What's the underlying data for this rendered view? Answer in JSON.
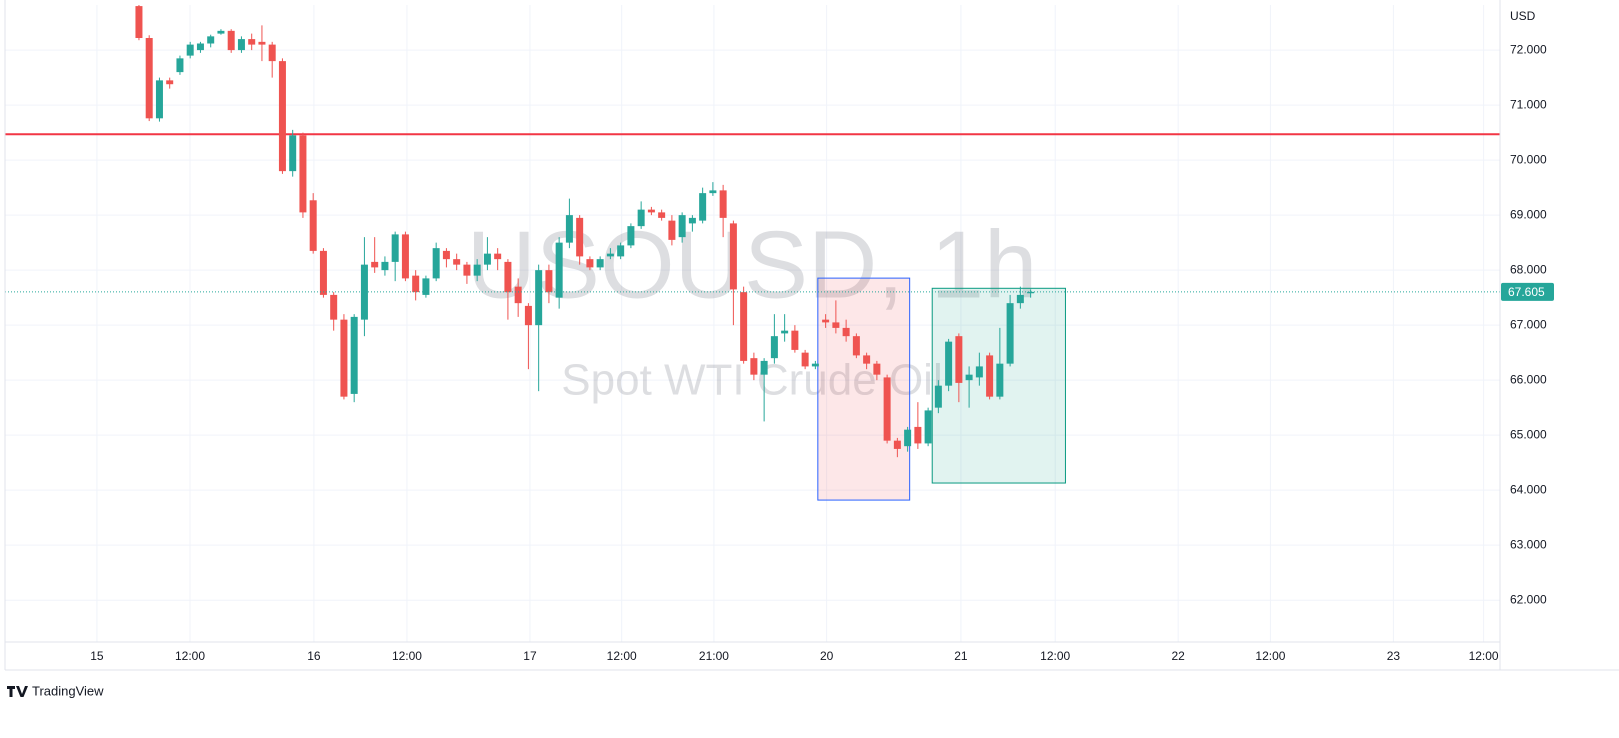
{
  "chart_data": {
    "type": "candlestick",
    "watermark": "USOUSD, 1h",
    "description": "Spot WTI Crude Oil",
    "currency": "USD",
    "brand": "TradingView",
    "up_color": "#26a69a",
    "down_color": "#ef5350",
    "grid": true,
    "xlim": [
      -13.07,
      132.8
    ],
    "ylim": [
      61.24,
      72.82
    ],
    "xticks": [
      {
        "value": -4.1,
        "label": "15"
      },
      {
        "value": 4.98,
        "label": "12:00"
      },
      {
        "value": 17.07,
        "label": "16"
      },
      {
        "value": 26.15,
        "label": "12:00"
      },
      {
        "value": 38.15,
        "label": "17"
      },
      {
        "value": 47.1,
        "label": "12:00"
      },
      {
        "value": 56.1,
        "label": "21:00"
      },
      {
        "value": 67.1,
        "label": "20"
      },
      {
        "value": 80.2,
        "label": "21"
      },
      {
        "value": 89.4,
        "label": "12:00"
      },
      {
        "value": 101.4,
        "label": "22"
      },
      {
        "value": 110.4,
        "label": "12:00"
      },
      {
        "value": 122.4,
        "label": "23"
      },
      {
        "value": 131.2,
        "label": "12:00"
      }
    ],
    "yticks": [
      {
        "value": 62,
        "label": "62.000"
      },
      {
        "value": 63,
        "label": "63.000"
      },
      {
        "value": 64,
        "label": "64.000"
      },
      {
        "value": 65,
        "label": "65.000"
      },
      {
        "value": 66,
        "label": "66.000"
      },
      {
        "value": 67,
        "label": "67.000"
      },
      {
        "value": 68,
        "label": "68.000"
      },
      {
        "value": 69,
        "label": "69.000"
      },
      {
        "value": 70,
        "label": "70.000"
      },
      {
        "value": 71,
        "label": "71.000"
      },
      {
        "value": 72,
        "label": "72.000"
      }
    ],
    "horizontal_line": {
      "value": 70.47,
      "color": "#f23645"
    },
    "last_price": 67.605,
    "boxes": [
      {
        "x": [
          66.24,
          75.2
        ],
        "y": [
          63.82,
          67.855
        ],
        "stroke": "#2962ff",
        "fill": "rgba(242,54,69,0.12)"
      },
      {
        "x": [
          77.4,
          90.4
        ],
        "y": [
          64.13,
          67.67
        ],
        "stroke": "#089981",
        "fill": "rgba(8,153,129,0.12)"
      }
    ],
    "ohlc": [
      [
        72.8,
        72.82,
        72.18,
        72.22
      ],
      [
        72.22,
        72.27,
        70.71,
        70.76
      ],
      [
        70.76,
        71.5,
        70.7,
        71.45
      ],
      [
        71.45,
        71.5,
        71.3,
        71.38
      ],
      [
        71.6,
        71.9,
        71.55,
        71.85
      ],
      [
        71.9,
        72.15,
        71.85,
        72.1
      ],
      [
        72.0,
        72.15,
        71.95,
        72.12
      ],
      [
        72.12,
        72.28,
        72.05,
        72.25
      ],
      [
        72.3,
        72.38,
        72.28,
        72.35
      ],
      [
        72.35,
        72.38,
        71.95,
        72.0
      ],
      [
        72.0,
        72.25,
        71.95,
        72.2
      ],
      [
        72.2,
        72.3,
        72.0,
        72.1
      ],
      [
        72.15,
        72.45,
        71.8,
        72.1
      ],
      [
        72.1,
        72.15,
        71.5,
        71.8
      ],
      [
        71.8,
        71.85,
        69.75,
        69.8
      ],
      [
        69.8,
        70.55,
        69.7,
        70.45
      ],
      [
        70.45,
        70.5,
        68.95,
        69.05
      ],
      [
        69.27,
        69.4,
        68.3,
        68.35
      ],
      [
        68.35,
        68.4,
        67.5,
        67.55
      ],
      [
        67.55,
        67.6,
        66.9,
        67.1
      ],
      [
        67.1,
        67.2,
        65.65,
        65.7
      ],
      [
        65.75,
        67.2,
        65.6,
        67.15
      ],
      [
        67.1,
        68.6,
        66.8,
        68.1
      ],
      [
        68.15,
        68.6,
        67.95,
        68.05
      ],
      [
        68.0,
        68.25,
        67.9,
        68.15
      ],
      [
        68.15,
        68.7,
        67.8,
        68.65
      ],
      [
        68.65,
        68.7,
        67.8,
        67.85
      ],
      [
        67.9,
        68.0,
        67.45,
        67.6
      ],
      [
        67.55,
        67.9,
        67.5,
        67.85
      ],
      [
        67.85,
        68.5,
        67.8,
        68.4
      ],
      [
        68.35,
        68.4,
        68.05,
        68.2
      ],
      [
        68.2,
        68.3,
        68.0,
        68.1
      ],
      [
        68.1,
        68.15,
        67.75,
        67.9
      ],
      [
        67.9,
        68.2,
        67.8,
        68.1
      ],
      [
        68.1,
        68.6,
        68.0,
        68.3
      ],
      [
        68.3,
        68.4,
        68.0,
        68.2
      ],
      [
        68.15,
        68.2,
        67.1,
        67.6
      ],
      [
        67.7,
        67.85,
        67.15,
        67.4
      ],
      [
        67.35,
        67.4,
        66.2,
        67.0
      ],
      [
        67.0,
        68.1,
        65.8,
        68.0
      ],
      [
        68.0,
        68.1,
        67.4,
        67.6
      ],
      [
        67.5,
        68.6,
        67.3,
        68.5
      ],
      [
        68.5,
        69.3,
        68.4,
        69.0
      ],
      [
        68.95,
        69.0,
        68.1,
        68.25
      ],
      [
        68.2,
        68.25,
        68.0,
        68.05
      ],
      [
        68.05,
        68.25,
        68.0,
        68.2
      ],
      [
        68.25,
        68.4,
        68.2,
        68.3
      ],
      [
        68.25,
        68.5,
        68.2,
        68.45
      ],
      [
        68.45,
        68.85,
        68.4,
        68.8
      ],
      [
        68.8,
        69.25,
        68.75,
        69.1
      ],
      [
        69.1,
        69.15,
        69.0,
        69.05
      ],
      [
        69.05,
        69.1,
        68.9,
        68.95
      ],
      [
        68.9,
        69.0,
        68.45,
        68.55
      ],
      [
        68.6,
        69.05,
        68.5,
        69.0
      ],
      [
        68.85,
        69.0,
        68.7,
        68.95
      ],
      [
        68.9,
        69.5,
        68.85,
        69.4
      ],
      [
        69.4,
        69.6,
        69.35,
        69.45
      ],
      [
        69.45,
        69.55,
        68.6,
        68.95
      ],
      [
        68.85,
        68.9,
        67.0,
        67.65
      ],
      [
        67.6,
        67.7,
        66.3,
        66.35
      ],
      [
        66.4,
        66.5,
        66.0,
        66.1
      ],
      [
        66.1,
        66.4,
        65.25,
        66.35
      ],
      [
        66.4,
        67.2,
        66.3,
        66.8
      ],
      [
        66.85,
        67.2,
        66.7,
        66.9
      ],
      [
        66.9,
        67.0,
        66.5,
        66.55
      ],
      [
        66.5,
        66.55,
        66.2,
        66.25
      ],
      [
        66.25,
        66.35,
        66.2,
        66.3
      ],
      [
        67.1,
        67.2,
        66.95,
        67.05
      ],
      [
        67.05,
        67.45,
        66.85,
        66.95
      ],
      [
        66.95,
        67.1,
        66.7,
        66.8
      ],
      [
        66.8,
        66.85,
        66.4,
        66.45
      ],
      [
        66.45,
        66.5,
        66.2,
        66.3
      ],
      [
        66.3,
        66.35,
        66.0,
        66.1
      ],
      [
        66.05,
        66.1,
        64.85,
        64.9
      ],
      [
        64.9,
        64.95,
        64.6,
        64.75
      ],
      [
        64.8,
        65.15,
        64.7,
        65.1
      ],
      [
        65.15,
        65.6,
        64.75,
        64.85
      ],
      [
        64.85,
        65.5,
        64.8,
        65.45
      ],
      [
        65.5,
        66.0,
        65.4,
        65.9
      ],
      [
        65.9,
        66.75,
        65.8,
        66.7
      ],
      [
        66.8,
        66.85,
        65.6,
        65.95
      ],
      [
        66.0,
        66.25,
        65.5,
        66.1
      ],
      [
        66.05,
        66.5,
        65.9,
        66.25
      ],
      [
        66.45,
        66.5,
        65.65,
        65.7
      ],
      [
        65.7,
        66.95,
        65.65,
        66.3
      ],
      [
        66.3,
        67.55,
        66.25,
        67.4
      ],
      [
        67.4,
        67.7,
        67.3,
        67.55
      ],
      [
        67.58,
        67.65,
        67.5,
        67.605
      ]
    ]
  }
}
